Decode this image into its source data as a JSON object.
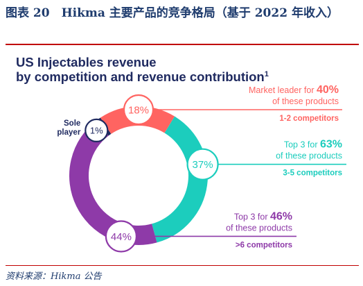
{
  "caption": "图表 20　Hikma 主要产品的竞争格局（基于 2022 年收入）",
  "source": "资料来源：Hikma 公告",
  "chart_data": {
    "type": "pie",
    "title": "US Injectables revenue",
    "subtitle": "by competition and revenue contribution",
    "title_superscript": "1",
    "slices": [
      {
        "label": "Sole player",
        "value": 1,
        "value_label": "1%",
        "color": "#1f2a60",
        "callout": []
      },
      {
        "label": "1-2 competitors",
        "value": 18,
        "value_label": "18%",
        "color": "#ff6461",
        "callout": [
          {
            "text": "Market leader for ",
            "emph": "40%"
          },
          {
            "text": "of these products",
            "emph": ""
          }
        ]
      },
      {
        "label": "3-5 competitors",
        "value": 37,
        "value_label": "37%",
        "color": "#1ccdbd",
        "callout": [
          {
            "text": "Top 3 for ",
            "emph": "63%"
          },
          {
            "text": "of these products",
            "emph": ""
          }
        ]
      },
      {
        "label": ">6 competitors",
        "value": 44,
        "value_label": "44%",
        "color": "#8e3aa8",
        "callout": [
          {
            "text": "Top 3 for ",
            "emph": "46%"
          },
          {
            "text": "of these products",
            "emph": ""
          }
        ]
      }
    ]
  }
}
